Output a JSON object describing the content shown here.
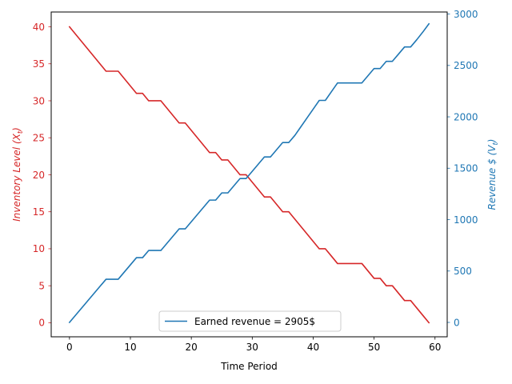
{
  "chart_data": {
    "type": "line",
    "title": "",
    "xlabel": "Time Period",
    "ylabel_left": "Inventory Level (X",
    "ylabel_left_sub": "t",
    "ylabel_right": "Revenue $ (V",
    "ylabel_right_sub": "t",
    "xlim": [
      -3,
      62
    ],
    "ylim_left": [
      -1.9,
      42
    ],
    "ylim_right": [
      -140,
      3020
    ],
    "xticks": [
      0,
      10,
      20,
      30,
      40,
      50,
      60
    ],
    "yticks_left": [
      0,
      5,
      10,
      15,
      20,
      25,
      30,
      35,
      40
    ],
    "yticks_right": [
      0,
      500,
      1000,
      1500,
      2000,
      2500,
      3000
    ],
    "grid": false,
    "legend_placement": "lower center",
    "colors": {
      "left_axis": "#d62728",
      "right_axis": "#1f77b4"
    },
    "x": [
      0,
      1,
      2,
      3,
      4,
      5,
      6,
      7,
      8,
      9,
      10,
      11,
      12,
      13,
      14,
      15,
      16,
      17,
      18,
      19,
      20,
      21,
      22,
      23,
      24,
      25,
      26,
      27,
      28,
      29,
      30,
      31,
      32,
      33,
      34,
      35,
      36,
      37,
      38,
      39,
      40,
      41,
      42,
      43,
      44,
      45,
      46,
      47,
      48,
      49,
      50,
      51,
      52,
      53,
      54,
      55,
      56,
      57,
      58,
      59
    ],
    "series": [
      {
        "name": "",
        "axis": "left",
        "color": "#d62728",
        "values": [
          40,
          39,
          38,
          37,
          36,
          35,
          34,
          34,
          34,
          33,
          32,
          31,
          31,
          30,
          30,
          30,
          29,
          28,
          27,
          27,
          26,
          25,
          24,
          23,
          23,
          22,
          22,
          21,
          20,
          20,
          19,
          18,
          17,
          17,
          16,
          15,
          15,
          14,
          13,
          12,
          11,
          10,
          10,
          9,
          8,
          8,
          8,
          8,
          8,
          7,
          6,
          6,
          5,
          5,
          4,
          3,
          3,
          2,
          1,
          0
        ]
      },
      {
        "name": "Earned revenue = 2905$",
        "axis": "right",
        "color": "#1f77b4",
        "values": [
          0,
          70,
          140,
          210,
          280,
          350,
          420,
          420,
          420,
          490,
          560,
          630,
          630,
          700,
          700,
          700,
          770,
          840,
          910,
          910,
          980,
          1050,
          1120,
          1190,
          1190,
          1260,
          1260,
          1330,
          1400,
          1400,
          1470,
          1540,
          1610,
          1610,
          1680,
          1750,
          1750,
          1820,
          1905,
          1990,
          2075,
          2160,
          2160,
          2245,
          2330,
          2330,
          2330,
          2330,
          2330,
          2400,
          2470,
          2470,
          2540,
          2540,
          2610,
          2680,
          2680,
          2750,
          2825,
          2905
        ]
      }
    ]
  }
}
